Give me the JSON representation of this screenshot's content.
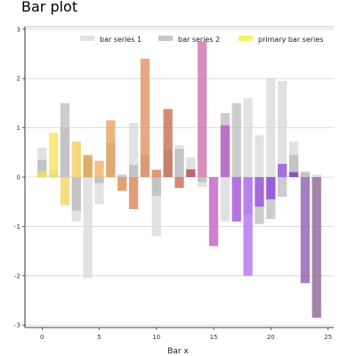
{
  "chart_data": {
    "type": "bar",
    "title": "Bar plot",
    "xlabel": "Bar x",
    "ylabel": "",
    "xlim": [
      -1.5,
      25.5
    ],
    "ylim": [
      -3.05,
      3.05
    ],
    "xticks": [
      0,
      5,
      10,
      15,
      20,
      25
    ],
    "yticks": [
      -3,
      -2,
      -1,
      0,
      1,
      2,
      3
    ],
    "grid": true,
    "legend_position": "top-right",
    "x": [
      0,
      1,
      2,
      3,
      4,
      5,
      6,
      7,
      8,
      9,
      10,
      11,
      12,
      13,
      14,
      15,
      16,
      17,
      18,
      19,
      20,
      21,
      22,
      23,
      24
    ],
    "series": [
      {
        "name": "bar series 1",
        "color": "#d8d8d8",
        "values": [
          0.6,
          0.15,
          1.0,
          -0.9,
          -2.05,
          -0.55,
          0.15,
          0.0,
          1.1,
          0.45,
          -1.2,
          0.0,
          0.65,
          0.4,
          -0.2,
          0.0,
          -0.9,
          -0.9,
          1.6,
          0.85,
          2.0,
          1.95,
          0.72,
          0.12,
          0.05
        ]
      },
      {
        "name": "bar series 2",
        "color": "#b8b8b8",
        "values": [
          0.35,
          0.05,
          1.5,
          -0.68,
          0.4,
          -0.12,
          0.7,
          0.05,
          0.25,
          0.45,
          -0.38,
          0.55,
          0.57,
          0.12,
          -0.1,
          0.0,
          1.3,
          1.5,
          -0.75,
          -0.95,
          -0.85,
          -0.4,
          0.45,
          0.1,
          0.0
        ]
      },
      {
        "name": "primary bar series",
        "values": [
          0.12,
          0.9,
          -0.57,
          0.72,
          0.45,
          0.33,
          1.15,
          -0.28,
          -0.65,
          2.4,
          0.15,
          1.38,
          -0.22,
          0.16,
          2.75,
          -1.4,
          1.05,
          -0.9,
          -2.0,
          -0.6,
          -0.45,
          0.27,
          0.1,
          -2.15,
          -2.85
        ],
        "colors": [
          "#f3e05a",
          "#f7e35a",
          "#f3d45f",
          "#f5cc5a",
          "#e2a44a",
          "#f0ad5f",
          "#e8a05a",
          "#d9884f",
          "#d7824f",
          "#e0905f",
          "#d77a4f",
          "#c46a4f",
          "#cc6650",
          "#b44f52",
          "#cc70a8",
          "#c05ec0",
          "#b65ac8",
          "#a855e0",
          "#b070f0",
          "#9a50e0",
          "#8a40d8",
          "#9055d8",
          "#7a30c8",
          "#8e5ab0",
          "#8a6090"
        ]
      }
    ]
  }
}
